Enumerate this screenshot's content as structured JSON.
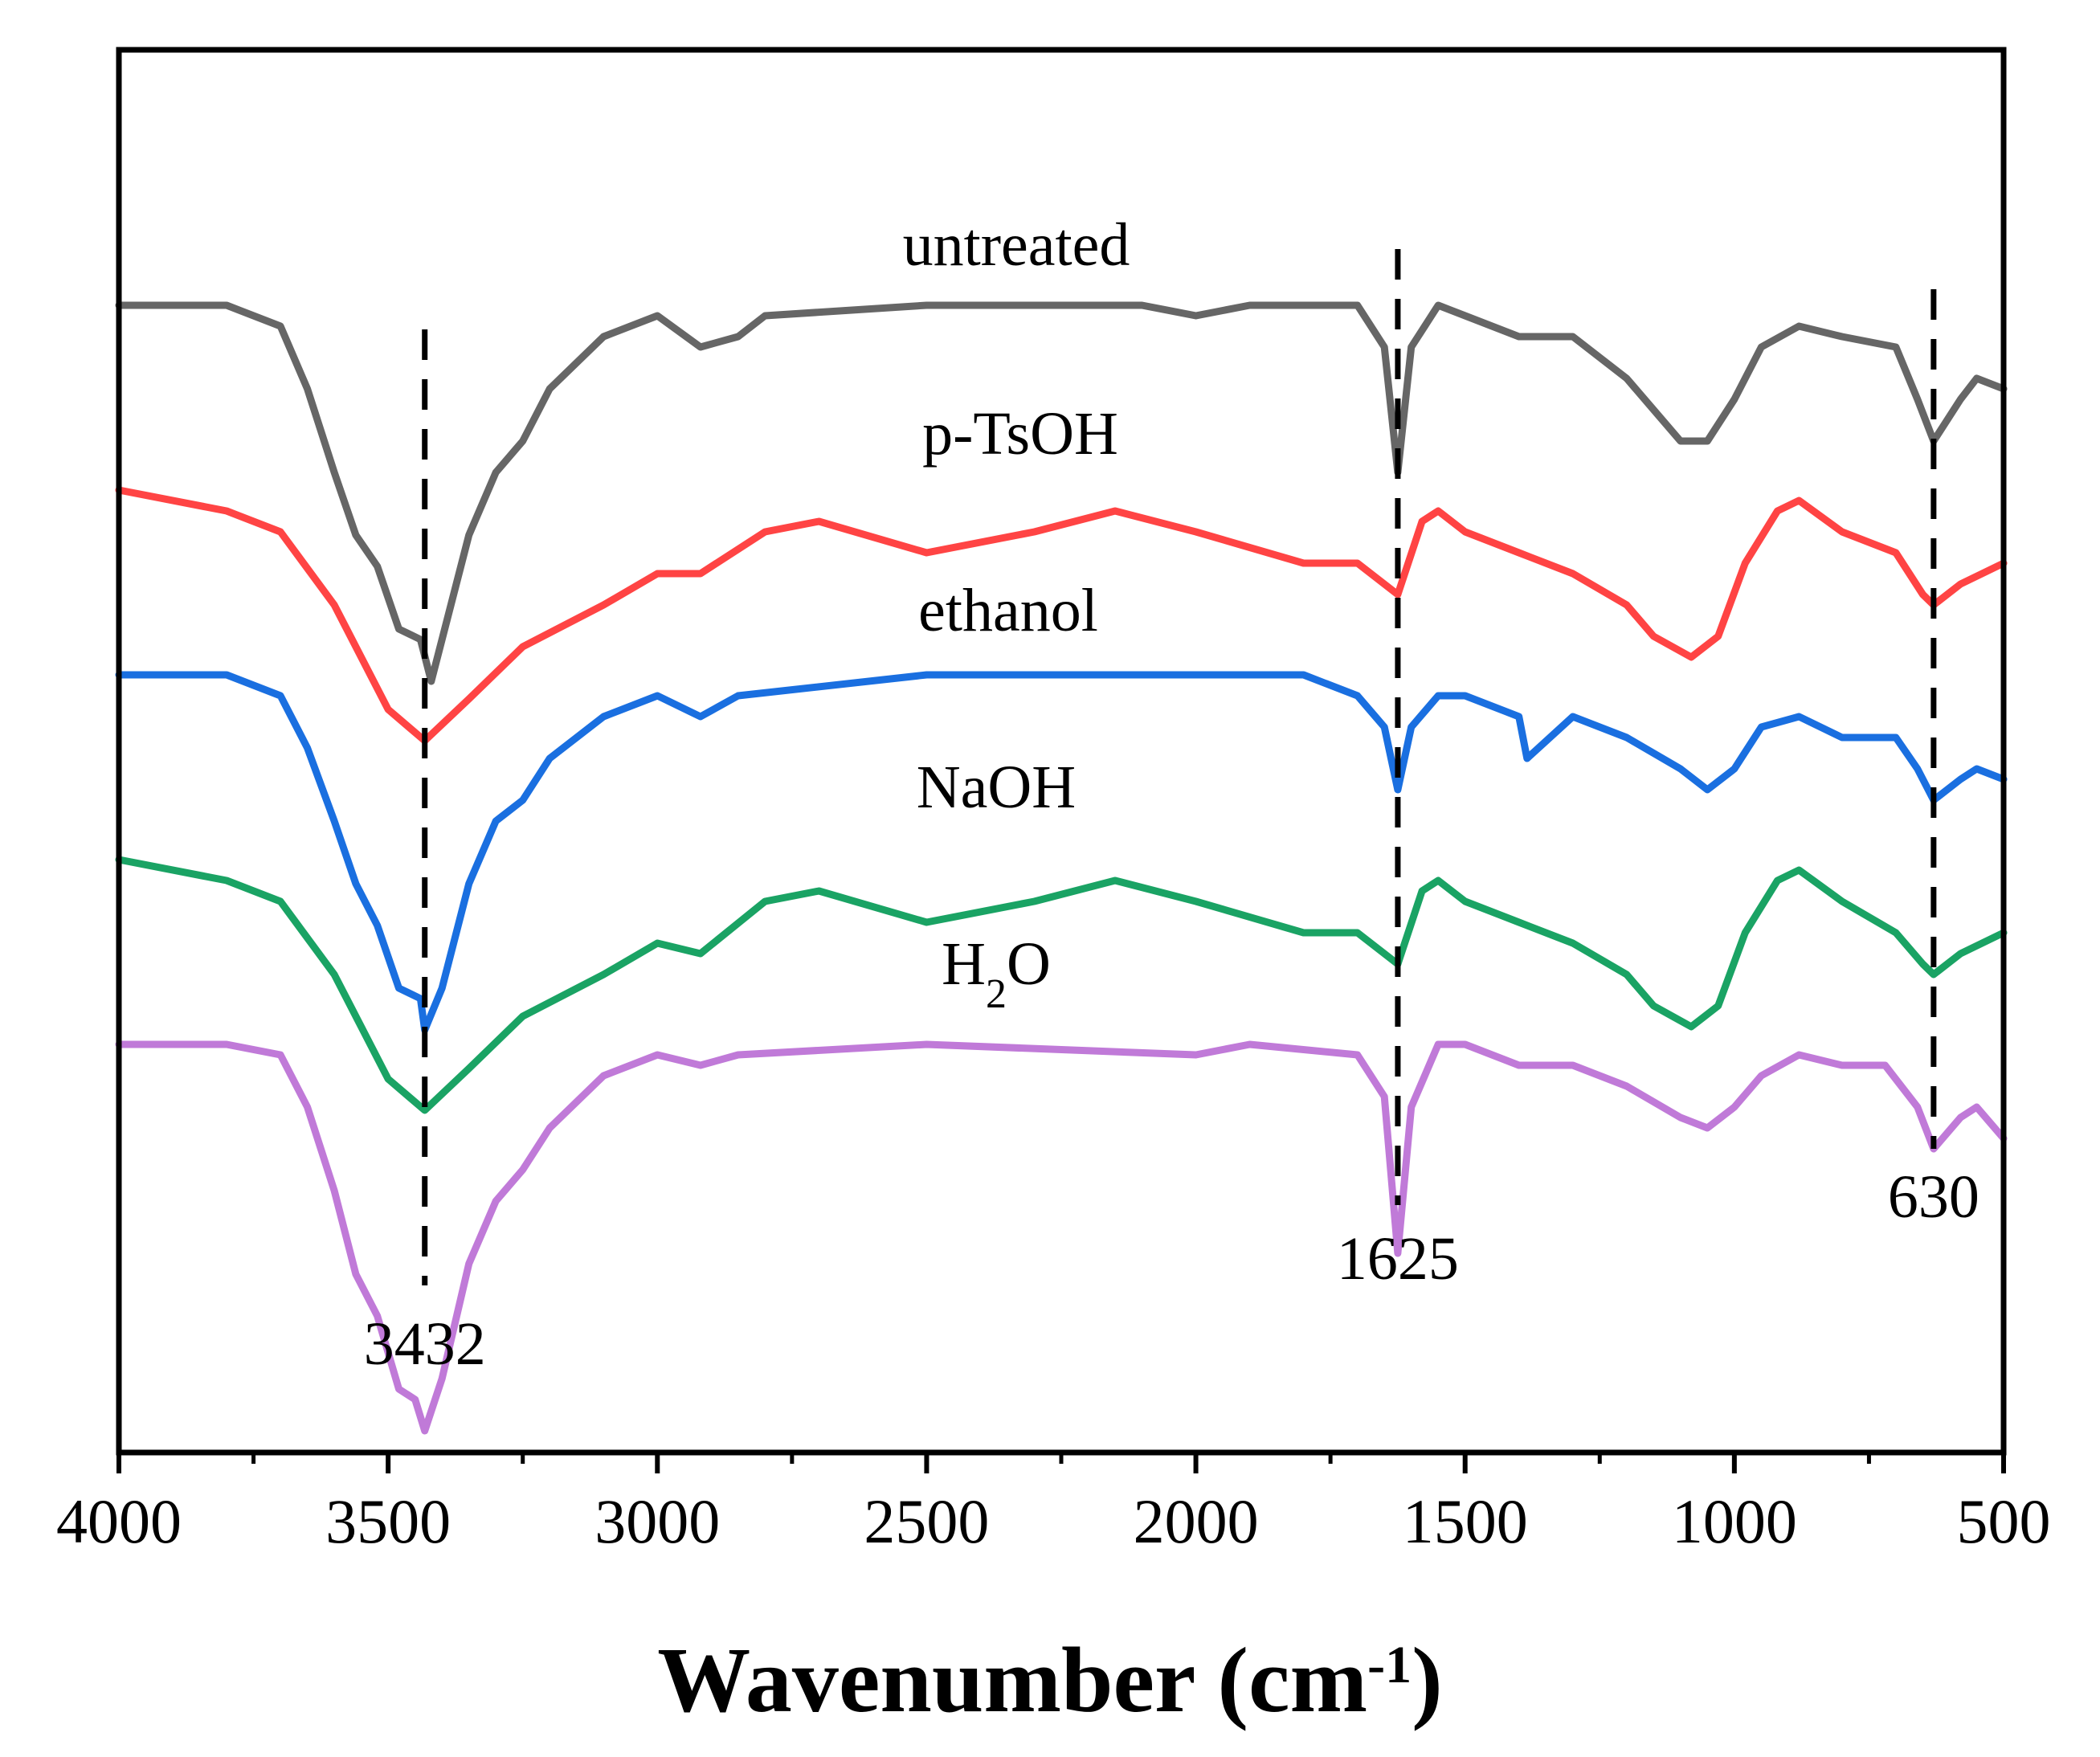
{
  "chart_data": {
    "type": "line",
    "xlabel": "Wavenumber (cm",
    "xlabel_sup": "-1",
    "xlabel_close": ")",
    "xlim": [
      4000,
      500
    ],
    "x_reversed": true,
    "x_ticks": [
      "4000",
      "3500",
      "3000",
      "2500",
      "2000",
      "1500",
      "1000",
      "500"
    ],
    "y_axis_ticks_shown": false,
    "grid": false,
    "colors": {
      "untreated": "#666666",
      "p-TsOH": "#ff4444",
      "ethanol": "#1a6fe0",
      "NaOH": "#1aa364",
      "H2O": "#c07ad8"
    },
    "series": [
      {
        "name": "untreated",
        "label_html": "untreated",
        "points": [
          [
            4000,
            5.0
          ],
          [
            3800,
            5.0
          ],
          [
            3700,
            4.8
          ],
          [
            3650,
            4.2
          ],
          [
            3600,
            3.4
          ],
          [
            3560,
            2.8
          ],
          [
            3520,
            2.5
          ],
          [
            3480,
            1.9
          ],
          [
            3440,
            1.8
          ],
          [
            3420,
            1.4
          ],
          [
            3400,
            1.8
          ],
          [
            3350,
            2.8
          ],
          [
            3300,
            3.4
          ],
          [
            3250,
            3.7
          ],
          [
            3200,
            4.2
          ],
          [
            3100,
            4.7
          ],
          [
            3000,
            4.9
          ],
          [
            2920,
            4.6
          ],
          [
            2850,
            4.7
          ],
          [
            2800,
            4.9
          ],
          [
            2500,
            5.0
          ],
          [
            2300,
            5.0
          ],
          [
            2100,
            5.0
          ],
          [
            2000,
            4.9
          ],
          [
            1900,
            5.0
          ],
          [
            1700,
            5.0
          ],
          [
            1650,
            4.6
          ],
          [
            1625,
            3.4
          ],
          [
            1600,
            4.6
          ],
          [
            1550,
            5.0
          ],
          [
            1500,
            4.9
          ],
          [
            1400,
            4.7
          ],
          [
            1300,
            4.7
          ],
          [
            1200,
            4.3
          ],
          [
            1100,
            3.7
          ],
          [
            1050,
            3.7
          ],
          [
            1000,
            4.1
          ],
          [
            950,
            4.6
          ],
          [
            880,
            4.8
          ],
          [
            800,
            4.7
          ],
          [
            700,
            4.6
          ],
          [
            660,
            4.1
          ],
          [
            630,
            3.7
          ],
          [
            580,
            4.1
          ],
          [
            550,
            4.3
          ],
          [
            500,
            4.2
          ]
        ]
      },
      {
        "name": "p-TsOH",
        "label_html": "p-TsOH",
        "points": [
          [
            4000,
            5.0
          ],
          [
            3800,
            4.8
          ],
          [
            3700,
            4.6
          ],
          [
            3600,
            3.9
          ],
          [
            3500,
            2.9
          ],
          [
            3432,
            2.6
          ],
          [
            3350,
            3.0
          ],
          [
            3250,
            3.5
          ],
          [
            3100,
            3.9
          ],
          [
            3000,
            4.2
          ],
          [
            2920,
            4.2
          ],
          [
            2800,
            4.6
          ],
          [
            2700,
            4.7
          ],
          [
            2500,
            4.4
          ],
          [
            2300,
            4.6
          ],
          [
            2150,
            4.8
          ],
          [
            2000,
            4.6
          ],
          [
            1800,
            4.3
          ],
          [
            1700,
            4.3
          ],
          [
            1625,
            4.0
          ],
          [
            1580,
            4.7
          ],
          [
            1550,
            4.8
          ],
          [
            1500,
            4.6
          ],
          [
            1400,
            4.4
          ],
          [
            1300,
            4.2
          ],
          [
            1200,
            3.9
          ],
          [
            1150,
            3.6
          ],
          [
            1080,
            3.4
          ],
          [
            1030,
            3.6
          ],
          [
            980,
            4.3
          ],
          [
            920,
            4.8
          ],
          [
            880,
            4.9
          ],
          [
            800,
            4.6
          ],
          [
            700,
            4.4
          ],
          [
            650,
            4.0
          ],
          [
            630,
            3.9
          ],
          [
            580,
            4.1
          ],
          [
            500,
            4.3
          ]
        ]
      },
      {
        "name": "ethanol",
        "label_html": "ethanol",
        "points": [
          [
            4000,
            5.0
          ],
          [
            3800,
            5.0
          ],
          [
            3700,
            4.8
          ],
          [
            3650,
            4.3
          ],
          [
            3600,
            3.6
          ],
          [
            3560,
            3.0
          ],
          [
            3520,
            2.6
          ],
          [
            3480,
            2.0
          ],
          [
            3440,
            1.9
          ],
          [
            3432,
            1.6
          ],
          [
            3400,
            2.0
          ],
          [
            3350,
            3.0
          ],
          [
            3300,
            3.6
          ],
          [
            3250,
            3.8
          ],
          [
            3200,
            4.2
          ],
          [
            3100,
            4.6
          ],
          [
            3000,
            4.8
          ],
          [
            2920,
            4.6
          ],
          [
            2850,
            4.8
          ],
          [
            2500,
            5.0
          ],
          [
            2000,
            5.0
          ],
          [
            1800,
            5.0
          ],
          [
            1700,
            4.8
          ],
          [
            1650,
            4.5
          ],
          [
            1625,
            3.9
          ],
          [
            1600,
            4.5
          ],
          [
            1550,
            4.8
          ],
          [
            1500,
            4.8
          ],
          [
            1400,
            4.6
          ],
          [
            1385,
            4.2
          ],
          [
            1300,
            4.6
          ],
          [
            1200,
            4.4
          ],
          [
            1100,
            4.1
          ],
          [
            1050,
            3.9
          ],
          [
            1000,
            4.1
          ],
          [
            950,
            4.5
          ],
          [
            880,
            4.6
          ],
          [
            800,
            4.4
          ],
          [
            700,
            4.4
          ],
          [
            660,
            4.1
          ],
          [
            630,
            3.8
          ],
          [
            580,
            4.0
          ],
          [
            550,
            4.1
          ],
          [
            500,
            4.0
          ]
        ]
      },
      {
        "name": "NaOH",
        "label_html": "NaOH",
        "points": [
          [
            4000,
            5.0
          ],
          [
            3800,
            4.8
          ],
          [
            3700,
            4.6
          ],
          [
            3600,
            3.9
          ],
          [
            3500,
            2.9
          ],
          [
            3432,
            2.6
          ],
          [
            3350,
            3.0
          ],
          [
            3250,
            3.5
          ],
          [
            3100,
            3.9
          ],
          [
            3000,
            4.2
          ],
          [
            2920,
            4.1
          ],
          [
            2800,
            4.6
          ],
          [
            2700,
            4.7
          ],
          [
            2500,
            4.4
          ],
          [
            2300,
            4.6
          ],
          [
            2150,
            4.8
          ],
          [
            2000,
            4.6
          ],
          [
            1800,
            4.3
          ],
          [
            1700,
            4.3
          ],
          [
            1625,
            4.0
          ],
          [
            1580,
            4.7
          ],
          [
            1550,
            4.8
          ],
          [
            1500,
            4.6
          ],
          [
            1400,
            4.4
          ],
          [
            1300,
            4.2
          ],
          [
            1200,
            3.9
          ],
          [
            1150,
            3.6
          ],
          [
            1080,
            3.4
          ],
          [
            1030,
            3.6
          ],
          [
            980,
            4.3
          ],
          [
            920,
            4.8
          ],
          [
            880,
            4.9
          ],
          [
            800,
            4.6
          ],
          [
            700,
            4.3
          ],
          [
            650,
            4.0
          ],
          [
            630,
            3.9
          ],
          [
            580,
            4.1
          ],
          [
            500,
            4.3
          ]
        ]
      },
      {
        "name": "H2O",
        "label_html": "H<tspan baseline-shift='sub' font-size='52'>2</tspan>O",
        "points": [
          [
            4000,
            5.0
          ],
          [
            3800,
            5.0
          ],
          [
            3700,
            4.9
          ],
          [
            3650,
            4.4
          ],
          [
            3600,
            3.6
          ],
          [
            3560,
            2.8
          ],
          [
            3520,
            2.4
          ],
          [
            3480,
            1.7
          ],
          [
            3450,
            1.6
          ],
          [
            3432,
            1.3
          ],
          [
            3400,
            1.8
          ],
          [
            3350,
            2.9
          ],
          [
            3300,
            3.5
          ],
          [
            3250,
            3.8
          ],
          [
            3200,
            4.2
          ],
          [
            3100,
            4.7
          ],
          [
            3000,
            4.9
          ],
          [
            2920,
            4.8
          ],
          [
            2850,
            4.9
          ],
          [
            2500,
            5.0
          ],
          [
            2000,
            4.9
          ],
          [
            1900,
            5.0
          ],
          [
            1700,
            4.9
          ],
          [
            1650,
            4.5
          ],
          [
            1625,
            3.0
          ],
          [
            1600,
            4.4
          ],
          [
            1550,
            5.0
          ],
          [
            1500,
            5.0
          ],
          [
            1400,
            4.8
          ],
          [
            1300,
            4.8
          ],
          [
            1200,
            4.6
          ],
          [
            1100,
            4.3
          ],
          [
            1050,
            4.2
          ],
          [
            1000,
            4.4
          ],
          [
            950,
            4.7
          ],
          [
            880,
            4.9
          ],
          [
            800,
            4.8
          ],
          [
            720,
            4.8
          ],
          [
            660,
            4.4
          ],
          [
            630,
            4.0
          ],
          [
            580,
            4.3
          ],
          [
            550,
            4.4
          ],
          [
            500,
            4.1
          ]
        ]
      }
    ],
    "peak_lines": [
      {
        "x": 3432,
        "label": "3432"
      },
      {
        "x": 1625,
        "label": "1625"
      },
      {
        "x": 630,
        "label": "630"
      }
    ]
  }
}
